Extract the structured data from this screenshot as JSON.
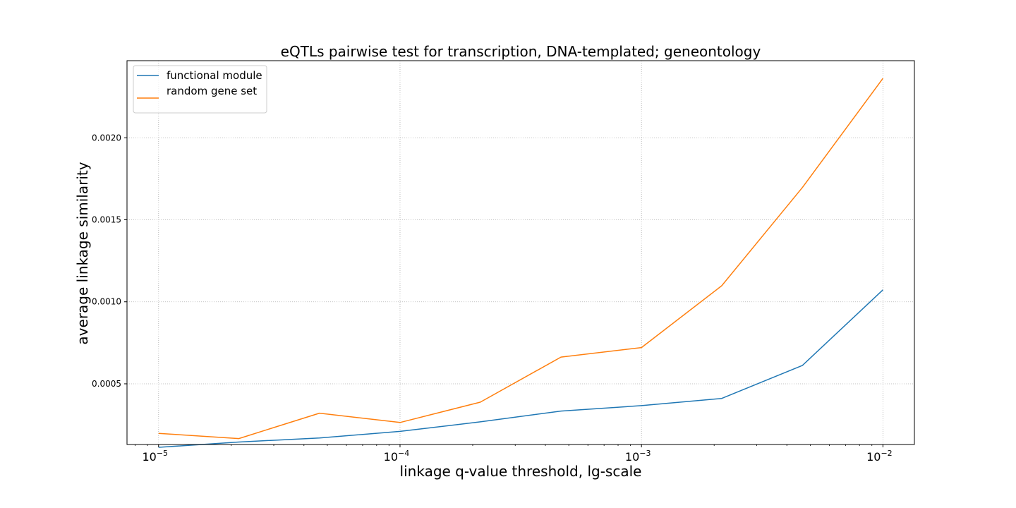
{
  "chart_data": {
    "type": "line",
    "title": "eQTLs pairwise test for transcription, DNA-templated; geneontology",
    "xlabel": "linkage q-value threshold, lg-scale",
    "ylabel": "average linkage similarity",
    "x_scale": "log10",
    "x": [
      1e-05,
      2.15e-05,
      4.64e-05,
      0.0001,
      0.000215,
      0.000464,
      0.001,
      0.00215,
      0.00464,
      0.01
    ],
    "xlim": [
      7.4e-06,
      0.0135
    ],
    "ylim": [
      0.00013,
      0.00247
    ],
    "x_ticks": [
      {
        "value": 1e-05,
        "base": "10",
        "exp": "−5"
      },
      {
        "value": 0.0001,
        "base": "10",
        "exp": "−4"
      },
      {
        "value": 0.001,
        "base": "10",
        "exp": "−3"
      },
      {
        "value": 0.01,
        "base": "10",
        "exp": "−2"
      }
    ],
    "y_ticks": [
      {
        "value": 0.0005,
        "label": "0.0005"
      },
      {
        "value": 0.001,
        "label": "0.0010"
      },
      {
        "value": 0.0015,
        "label": "0.0015"
      },
      {
        "value": 0.002,
        "label": "0.0020"
      }
    ],
    "grid": true,
    "legend_position": "top-left",
    "series": [
      {
        "name": "functional module",
        "color": "#1f77b4",
        "values": [
          0.000113,
          0.000145,
          0.00017,
          0.00021,
          0.000268,
          0.000334,
          0.000367,
          0.000411,
          0.000612,
          0.001073
        ]
      },
      {
        "name": "random gene set",
        "color": "#ff7f0e",
        "values": [
          0.000198,
          0.000166,
          0.000321,
          0.000264,
          0.000388,
          0.000663,
          0.000721,
          0.001098,
          0.001697,
          0.002362
        ]
      }
    ]
  }
}
